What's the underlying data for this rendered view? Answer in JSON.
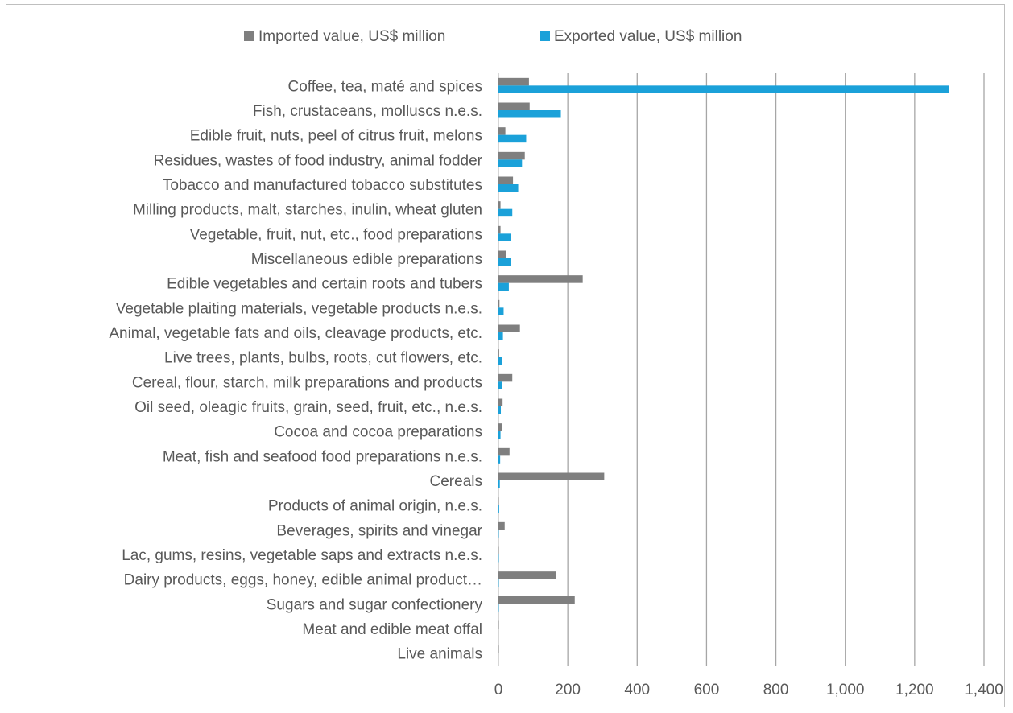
{
  "chart_data": {
    "type": "bar",
    "orientation": "horizontal",
    "categories": [
      "Coffee, tea, maté and spices",
      "Fish, crustaceans, molluscs n.e.s.",
      "Edible fruit, nuts, peel of citrus fruit, melons",
      "Residues, wastes of food industry, animal fodder",
      "Tobacco and manufactured tobacco substitutes",
      "Milling products, malt, starches, inulin, wheat gluten",
      "Vegetable, fruit, nut, etc., food preparations",
      "Miscellaneous edible preparations",
      "Edible vegetables and certain roots and tubers",
      "Vegetable plaiting materials, vegetable products n.e.s.",
      "Animal, vegetable fats and oils, cleavage products, etc.",
      "Live trees, plants, bulbs, roots, cut flowers, etc.",
      "Cereal, flour, starch, milk preparations and products",
      "Oil seed, oleagic fruits, grain, seed, fruit, etc., n.e.s.",
      "Cocoa and cocoa preparations",
      "Meat, fish and seafood food preparations n.e.s.",
      "Cereals",
      "Products of animal origin, n.e.s.",
      "Beverages, spirits and vinegar",
      "Lac, gums, resins, vegetable saps and extracts n.e.s.",
      "Dairy products, eggs, honey, edible animal product…",
      "Sugars and sugar confectionery",
      "Meat and edible meat offal",
      "Live animals"
    ],
    "series": [
      {
        "name": "Imported value, US$ million",
        "color": "#7f7f7f",
        "values": [
          88,
          90,
          20,
          76,
          42,
          6,
          6,
          22,
          243,
          3,
          62,
          2,
          40,
          12,
          10,
          32,
          305,
          1,
          18,
          1,
          165,
          220,
          1,
          1
        ]
      },
      {
        "name": "Exported value, US$ million",
        "color": "#1ba1d9",
        "values": [
          1298,
          180,
          80,
          68,
          57,
          40,
          35,
          35,
          30,
          15,
          13,
          10,
          10,
          7,
          6,
          5,
          4,
          2,
          1,
          1,
          1,
          1,
          0,
          0
        ]
      }
    ],
    "xlim": [
      0,
      1400
    ],
    "xticks": [
      "0",
      "200",
      "400",
      "600",
      "800",
      "1,000",
      "1,200",
      "1,400"
    ],
    "xtick_values": [
      0,
      200,
      400,
      600,
      800,
      1000,
      1200,
      1400
    ],
    "grid": "vertical",
    "legend_position": "top"
  }
}
